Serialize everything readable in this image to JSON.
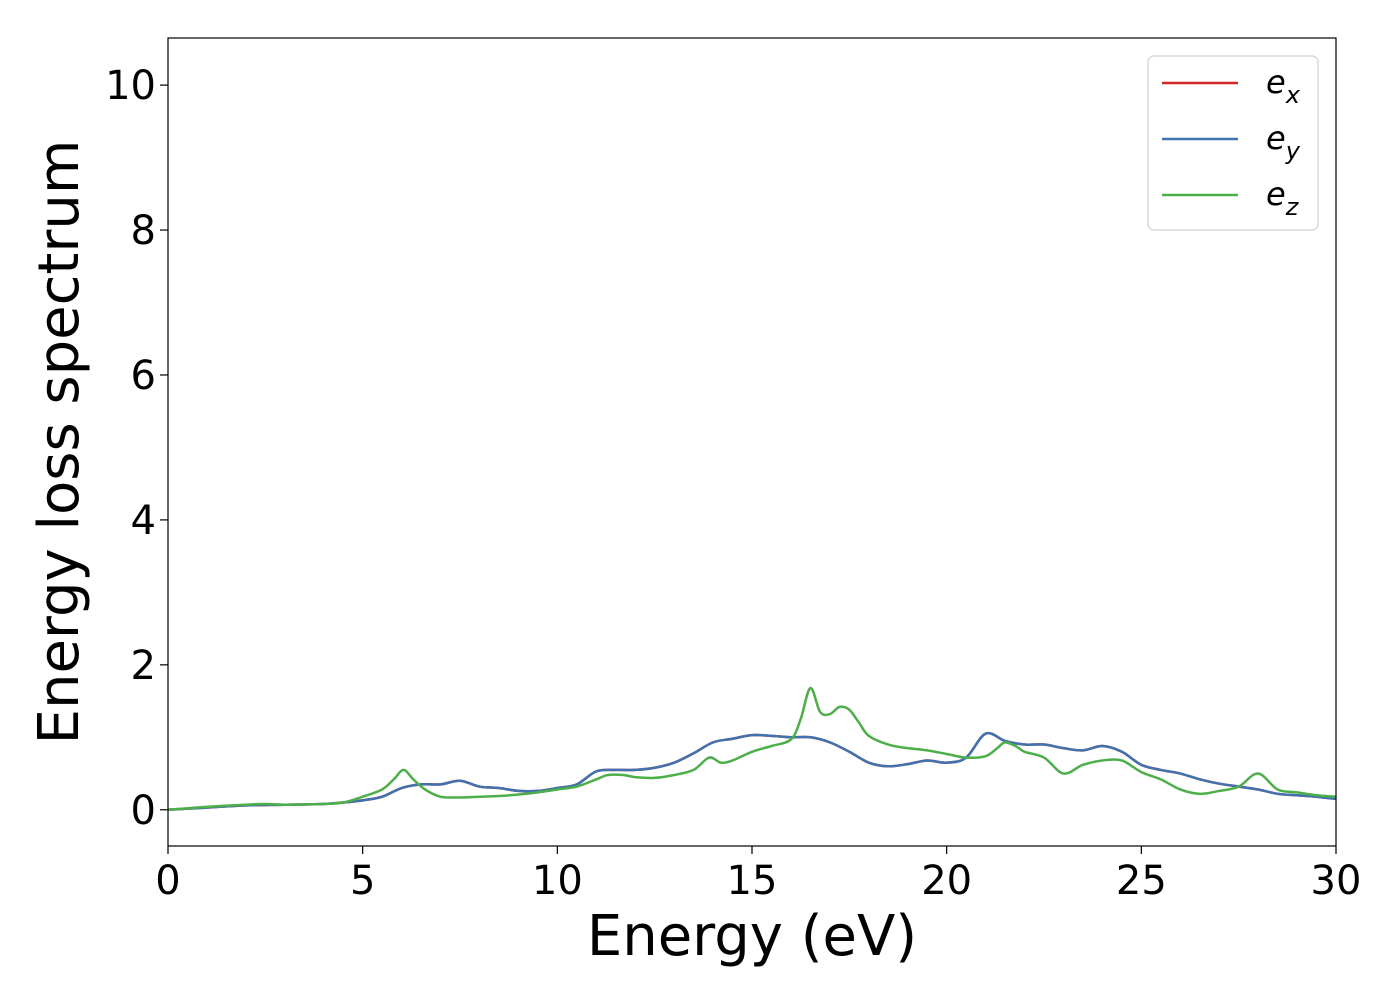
{
  "chart_data": {
    "type": "line",
    "title": "",
    "xlabel": "Energy (eV)",
    "ylabel": "Energy loss spectrum",
    "xlim": [
      0,
      30
    ],
    "ylim": [
      -0.5,
      10.65
    ],
    "x_ticks": [
      0,
      5,
      10,
      15,
      20,
      25,
      30
    ],
    "y_ticks": [
      0,
      2,
      4,
      6,
      8,
      10
    ],
    "grid": false,
    "legend_position": "top-right",
    "series": [
      {
        "name": "e_x",
        "legend_base": "e",
        "legend_sub": "x",
        "color": "#d62728",
        "x": [
          0,
          1,
          2,
          3,
          4,
          4.5,
          5,
          5.5,
          6,
          6.5,
          7,
          7.5,
          8,
          8.5,
          9,
          9.5,
          10,
          10.5,
          11,
          11.5,
          12,
          12.5,
          13,
          13.5,
          14,
          14.5,
          15,
          15.5,
          16,
          16.5,
          17,
          17.5,
          18,
          18.5,
          19,
          19.5,
          20,
          20.5,
          21,
          21.5,
          22,
          22.5,
          23,
          23.5,
          24,
          24.5,
          25,
          25.5,
          26,
          26.5,
          27,
          27.5,
          28,
          28.5,
          29,
          29.5,
          30
        ],
        "y": [
          0,
          0.03,
          0.06,
          0.07,
          0.08,
          0.1,
          0.13,
          0.18,
          0.3,
          0.35,
          0.35,
          0.4,
          0.32,
          0.3,
          0.26,
          0.26,
          0.3,
          0.35,
          0.53,
          0.55,
          0.55,
          0.58,
          0.65,
          0.78,
          0.93,
          0.98,
          1.03,
          1.02,
          1.0,
          1.0,
          0.93,
          0.8,
          0.65,
          0.6,
          0.63,
          0.68,
          0.65,
          0.72,
          1.05,
          0.95,
          0.9,
          0.9,
          0.85,
          0.82,
          0.88,
          0.8,
          0.62,
          0.55,
          0.5,
          0.42,
          0.36,
          0.32,
          0.28,
          0.22,
          0.2,
          0.18,
          0.15
        ]
      },
      {
        "name": "e_y",
        "legend_base": "e",
        "legend_sub": "y",
        "color": "#3f72ae",
        "x": [
          0,
          1,
          2,
          3,
          4,
          4.5,
          5,
          5.5,
          6,
          6.5,
          7,
          7.5,
          8,
          8.5,
          9,
          9.5,
          10,
          10.5,
          11,
          11.5,
          12,
          12.5,
          13,
          13.5,
          14,
          14.5,
          15,
          15.5,
          16,
          16.5,
          17,
          17.5,
          18,
          18.5,
          19,
          19.5,
          20,
          20.5,
          21,
          21.5,
          22,
          22.5,
          23,
          23.5,
          24,
          24.5,
          25,
          25.5,
          26,
          26.5,
          27,
          27.5,
          28,
          28.5,
          29,
          29.5,
          30
        ],
        "y": [
          0,
          0.03,
          0.06,
          0.07,
          0.08,
          0.1,
          0.13,
          0.18,
          0.3,
          0.35,
          0.35,
          0.4,
          0.32,
          0.3,
          0.26,
          0.26,
          0.3,
          0.35,
          0.53,
          0.55,
          0.55,
          0.58,
          0.65,
          0.78,
          0.93,
          0.98,
          1.03,
          1.02,
          1.0,
          1.0,
          0.93,
          0.8,
          0.65,
          0.6,
          0.63,
          0.68,
          0.65,
          0.72,
          1.05,
          0.95,
          0.9,
          0.9,
          0.85,
          0.82,
          0.88,
          0.8,
          0.62,
          0.55,
          0.5,
          0.42,
          0.36,
          0.32,
          0.28,
          0.22,
          0.2,
          0.18,
          0.15
        ]
      },
      {
        "name": "e_z",
        "legend_base": "e",
        "legend_sub": "z",
        "color": "#4daf4a",
        "x": [
          0,
          1,
          2,
          2.5,
          3,
          4,
          4.5,
          5,
          5.5,
          5.8,
          6.05,
          6.3,
          6.6,
          7,
          7.5,
          8,
          8.5,
          9,
          9.5,
          10,
          10.5,
          11,
          11.3,
          11.7,
          12,
          12.5,
          13,
          13.5,
          13.9,
          14.2,
          14.5,
          15,
          15.5,
          16,
          16.25,
          16.5,
          16.75,
          17,
          17.25,
          17.5,
          17.75,
          18,
          18.5,
          19,
          19.5,
          20,
          20.5,
          21,
          21.3,
          21.5,
          21.8,
          22,
          22.5,
          23,
          23.5,
          24,
          24.5,
          25,
          25.5,
          26,
          26.5,
          27,
          27.5,
          28,
          28.5,
          29,
          29.5,
          30
        ],
        "y": [
          0,
          0.04,
          0.07,
          0.08,
          0.07,
          0.08,
          0.1,
          0.18,
          0.28,
          0.42,
          0.55,
          0.42,
          0.28,
          0.18,
          0.17,
          0.18,
          0.19,
          0.21,
          0.24,
          0.28,
          0.32,
          0.42,
          0.48,
          0.48,
          0.45,
          0.44,
          0.48,
          0.55,
          0.72,
          0.65,
          0.68,
          0.8,
          0.88,
          0.97,
          1.25,
          1.68,
          1.35,
          1.32,
          1.42,
          1.38,
          1.2,
          1.02,
          0.9,
          0.85,
          0.82,
          0.77,
          0.72,
          0.74,
          0.85,
          0.93,
          0.87,
          0.8,
          0.72,
          0.5,
          0.62,
          0.68,
          0.68,
          0.52,
          0.42,
          0.28,
          0.22,
          0.26,
          0.32,
          0.5,
          0.28,
          0.24,
          0.2,
          0.18
        ]
      }
    ]
  }
}
